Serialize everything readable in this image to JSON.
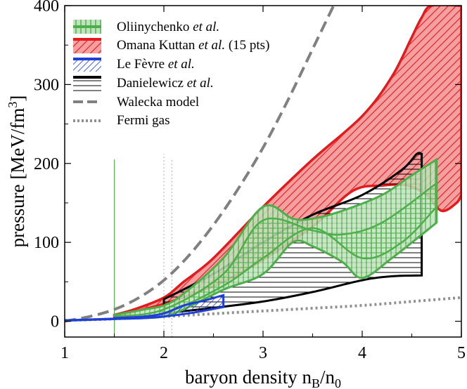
{
  "chart_data": {
    "type": "area",
    "xlabel": "baryon density n_B/n_0",
    "xlabel_parts": {
      "main": "baryon density n",
      "sub1": "B",
      "slash": "/n",
      "sub2": "0"
    },
    "ylabel": "pressure [MeV/fm^3]",
    "ylabel_parts": {
      "main": "pressure [MeV/fm",
      "sup": "3",
      "close": "]"
    },
    "xlim": [
      1,
      5
    ],
    "ylim": [
      -20,
      400
    ],
    "xticks": [
      "1",
      "2",
      "3",
      "4",
      "5"
    ],
    "yticks": [
      "0",
      "100",
      "200",
      "300",
      "400"
    ],
    "xtick_values": [
      1,
      2,
      3,
      4,
      5
    ],
    "ytick_values": [
      0,
      100,
      200,
      300,
      400
    ],
    "grid": false,
    "legend_position": "top-left",
    "colors": {
      "oliinychenko": "#4daf4a",
      "omana": "#e41a1c",
      "lefevre": "#1f3fd6",
      "danielewicz": "#000000",
      "walecka": "#808080",
      "fermi": "#909090"
    },
    "legend": [
      {
        "label": "Oliinychenko",
        "label_italic": "et al.",
        "suffix": "",
        "style": "vertical-hatch-green"
      },
      {
        "label": "Omana Kuttan",
        "label_italic": "et al.",
        "suffix": " (15 pts)",
        "style": "diag-hatch-red"
      },
      {
        "label": "Le Fèvre",
        "label_italic": "et al.",
        "suffix": "",
        "style": "diag-hatch-blue"
      },
      {
        "label": "Danielewicz",
        "label_italic": "et al.",
        "suffix": "",
        "style": "horizontal-hatch-black"
      },
      {
        "label": "Walecka model",
        "label_italic": "",
        "suffix": "",
        "style": "dashed-gray"
      },
      {
        "label": "Fermi gas",
        "label_italic": "",
        "suffix": "",
        "style": "dotted-gray"
      }
    ],
    "series": [
      {
        "name": "Omana Kuttan et al. (15 pts)",
        "kind": "band",
        "upper": [
          [
            1.5,
            8
          ],
          [
            1.7,
            15
          ],
          [
            2.0,
            30
          ],
          [
            2.2,
            50
          ],
          [
            2.5,
            80
          ],
          [
            3.0,
            145
          ],
          [
            3.5,
            205
          ],
          [
            4.0,
            260
          ],
          [
            4.3,
            310
          ],
          [
            4.5,
            360
          ],
          [
            4.6,
            385
          ],
          [
            4.7,
            400
          ],
          [
            5.0,
            400
          ]
        ],
        "lower": [
          [
            1.5,
            6
          ],
          [
            1.7,
            12
          ],
          [
            2.0,
            22
          ],
          [
            2.3,
            35
          ],
          [
            2.6,
            50
          ],
          [
            3.0,
            78
          ],
          [
            3.5,
            120
          ],
          [
            3.9,
            165
          ],
          [
            4.2,
            172
          ],
          [
            4.45,
            172
          ],
          [
            4.65,
            160
          ],
          [
            4.8,
            140
          ],
          [
            4.95,
            150
          ],
          [
            5.0,
            160
          ]
        ]
      },
      {
        "name": "Danielewicz et al.",
        "kind": "band",
        "upper": [
          [
            2.0,
            28
          ],
          [
            2.5,
            60
          ],
          [
            3.0,
            100
          ],
          [
            3.5,
            135
          ],
          [
            4.0,
            160
          ],
          [
            4.4,
            192
          ],
          [
            4.55,
            212
          ],
          [
            4.6,
            212
          ]
        ],
        "lower": [
          [
            2.0,
            10
          ],
          [
            2.5,
            17
          ],
          [
            3.0,
            25
          ],
          [
            3.5,
            37
          ],
          [
            4.0,
            52
          ],
          [
            4.3,
            57
          ],
          [
            4.6,
            58
          ]
        ]
      },
      {
        "name": "Oliinychenko et al.",
        "kind": "band",
        "upper": [
          [
            1.5,
            8
          ],
          [
            1.8,
            15
          ],
          [
            2.0,
            20
          ],
          [
            2.2,
            35
          ],
          [
            2.6,
            80
          ],
          [
            3.0,
            145
          ],
          [
            3.3,
            130
          ],
          [
            3.5,
            130
          ],
          [
            3.8,
            140
          ],
          [
            4.2,
            160
          ],
          [
            4.5,
            185
          ],
          [
            4.75,
            205
          ]
        ],
        "lower": [
          [
            1.5,
            3
          ],
          [
            1.8,
            4
          ],
          [
            2.0,
            6
          ],
          [
            2.2,
            15
          ],
          [
            2.6,
            40
          ],
          [
            3.0,
            60
          ],
          [
            3.3,
            100
          ],
          [
            3.5,
            95
          ],
          [
            3.8,
            75
          ],
          [
            4.0,
            55
          ],
          [
            4.3,
            80
          ],
          [
            4.75,
            125
          ]
        ],
        "inner_upper": [
          [
            1.5,
            6
          ],
          [
            2.0,
            15
          ],
          [
            2.6,
            60
          ],
          [
            3.0,
            128
          ],
          [
            3.5,
            115
          ],
          [
            3.8,
            110
          ],
          [
            4.2,
            125
          ],
          [
            4.75,
            175
          ]
        ],
        "inner_lower": [
          [
            1.5,
            4
          ],
          [
            2.0,
            10
          ],
          [
            2.6,
            45
          ],
          [
            3.0,
            80
          ],
          [
            3.5,
            118
          ],
          [
            4.0,
            80
          ],
          [
            4.4,
            100
          ],
          [
            4.75,
            145
          ]
        ]
      },
      {
        "name": "Le Fèvre et al.",
        "kind": "band",
        "upper": [
          [
            1.5,
            4
          ],
          [
            1.8,
            6
          ],
          [
            2.0,
            10
          ],
          [
            2.2,
            20
          ],
          [
            2.4,
            26
          ],
          [
            2.6,
            33
          ]
        ],
        "lower": [
          [
            1.5,
            3
          ],
          [
            1.8,
            4
          ],
          [
            2.0,
            6
          ],
          [
            2.3,
            11
          ],
          [
            2.6,
            18
          ]
        ]
      },
      {
        "name": "Walecka model",
        "kind": "line",
        "points": [
          [
            1.0,
            0
          ],
          [
            1.25,
            6
          ],
          [
            1.5,
            15
          ],
          [
            1.75,
            30
          ],
          [
            2.0,
            52
          ],
          [
            2.25,
            83
          ],
          [
            2.5,
            122
          ],
          [
            2.75,
            168
          ],
          [
            3.0,
            220
          ],
          [
            3.25,
            280
          ],
          [
            3.5,
            345
          ],
          [
            3.75,
            410
          ]
        ]
      },
      {
        "name": "Fermi gas",
        "kind": "line",
        "points": [
          [
            1.0,
            1
          ],
          [
            1.5,
            3
          ],
          [
            2.0,
            6
          ],
          [
            2.5,
            9.5
          ],
          [
            3.0,
            13
          ],
          [
            3.5,
            16.5
          ],
          [
            4.0,
            20
          ],
          [
            4.5,
            25
          ],
          [
            5.0,
            30
          ]
        ]
      }
    ],
    "vertical_guides": [
      {
        "x": 1.5,
        "ymax": 205,
        "style": "thin-green"
      },
      {
        "x": 2.0,
        "ymax": 212,
        "style": "dotted-gray"
      },
      {
        "x": 2.08,
        "ymax": 205,
        "style": "dotted-gray"
      }
    ]
  }
}
